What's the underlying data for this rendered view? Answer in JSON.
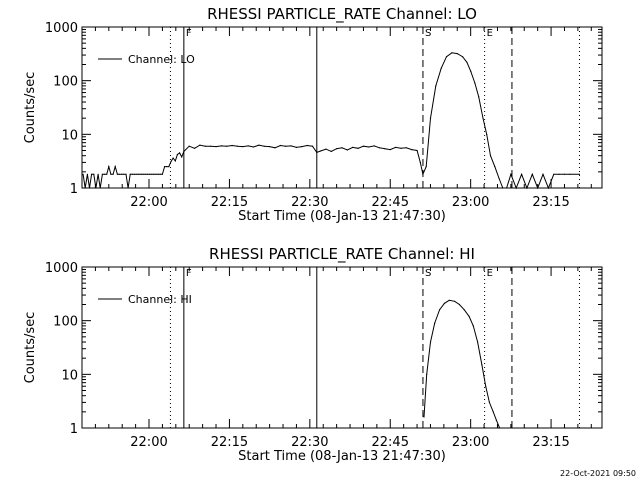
{
  "footer": {
    "timestamp": "22-Oct-2021 09:50"
  },
  "chart_data": [
    {
      "type": "line",
      "title": "RHESSI PARTICLE_RATE Channel: LO",
      "xlabel": "Start Time (08-Jan-13 21:47:30)",
      "ylabel": "Counts/sec",
      "yscale": "log",
      "ylim": [
        1,
        1000
      ],
      "ytick_labels": [
        "1",
        "10",
        "100",
        "1000"
      ],
      "xlim_minutes": [
        0,
        97
      ],
      "xticks_minutes": [
        12.5,
        27.5,
        42.5,
        57.5,
        72.5,
        87.5
      ],
      "xtick_labels": [
        "22:00",
        "22:15",
        "22:30",
        "22:45",
        "23:00",
        "23:15"
      ],
      "legend": {
        "label": "Channel: LO",
        "position": "top-left"
      },
      "markers": [
        {
          "label": "",
          "x": 16.5,
          "style": "dotted"
        },
        {
          "label": "F",
          "x": 19.0,
          "style": "solid"
        },
        {
          "label": "",
          "x": 43.8,
          "style": "solid"
        },
        {
          "label": "S",
          "x": 63.6,
          "style": "dashed"
        },
        {
          "label": "E",
          "x": 75.1,
          "style": "dotted"
        },
        {
          "label": "",
          "x": 80.2,
          "style": "dashed"
        },
        {
          "label": "",
          "x": 92.8,
          "style": "dotted"
        }
      ],
      "series": [
        {
          "color": "#000000",
          "x": [
            0.2,
            0.6,
            1.0,
            1.4,
            1.8,
            2.2,
            2.6,
            3.0,
            3.4,
            3.8,
            4.2,
            4.6,
            5.0,
            5.4,
            5.8,
            6.2,
            6.6,
            7.0,
            7.4,
            7.8,
            8.2,
            8.6,
            9.0,
            9.4,
            9.8,
            10.2,
            10.6,
            11.0,
            11.4,
            11.8,
            12.2,
            12.6,
            13.0,
            13.4,
            13.8,
            14.2,
            14.6,
            15.0,
            15.4,
            15.8,
            16.2,
            16.6,
            17.0,
            17.4,
            17.8,
            18.2,
            18.6,
            19.0,
            20.0,
            21.0,
            22.0,
            23.0,
            24.0,
            25.0,
            26.0,
            27.0,
            28.0,
            29.0,
            30.0,
            31.0,
            32.0,
            33.0,
            34.0,
            35.0,
            36.0,
            37.0,
            38.0,
            39.0,
            40.0,
            41.0,
            42.0,
            43.0,
            43.8,
            44.5,
            45.5,
            46.5,
            47.5,
            48.5,
            49.5,
            50.5,
            51.5,
            52.5,
            53.5,
            54.5,
            55.5,
            56.5,
            57.5,
            58.5,
            59.5,
            60.5,
            61.5,
            62.5,
            63.1,
            63.6,
            64.2,
            65.0,
            66.0,
            67.0,
            68.0,
            69.0,
            70.0,
            71.0,
            71.8,
            72.5,
            73.3,
            74.0,
            74.8,
            75.5,
            76.2,
            77.0,
            77.8,
            78.5,
            79.2,
            80.0,
            81.0,
            82.0,
            83.0,
            84.0,
            85.0,
            86.0,
            87.0,
            88.0,
            89.0,
            90.0,
            91.0,
            92.8
          ],
          "y": [
            1.8,
            1,
            1.8,
            1,
            1.8,
            1.8,
            1,
            1.8,
            1,
            1.8,
            1.8,
            1.8,
            2.5,
            1.8,
            1.8,
            2.5,
            1.8,
            1.8,
            1.8,
            1.8,
            1.8,
            1,
            1.8,
            1.8,
            1.8,
            1.8,
            1.8,
            1.8,
            1.8,
            1.8,
            1.8,
            1.8,
            1.8,
            1.8,
            1.8,
            1.8,
            1.8,
            1.8,
            2.5,
            2.5,
            2.5,
            3.1,
            3.6,
            3.2,
            4.2,
            4.5,
            3.8,
            4.8,
            6.0,
            5.5,
            6.3,
            6.0,
            6.0,
            5.9,
            6.1,
            6.0,
            6.2,
            6.0,
            5.9,
            6.1,
            5.8,
            6.3,
            6.0,
            5.9,
            5.6,
            6.2,
            6.0,
            6.1,
            5.7,
            5.9,
            6.2,
            6.0,
            4.6,
            4.9,
            5.3,
            4.8,
            5.4,
            5.6,
            5.1,
            5.7,
            5.5,
            6.0,
            5.8,
            6.1,
            5.6,
            5.4,
            5.2,
            5.7,
            5.5,
            5.6,
            5.2,
            5.0,
            3.0,
            1.8,
            2.5,
            20,
            80,
            170,
            280,
            330,
            320,
            280,
            220,
            150,
            90,
            50,
            20,
            10,
            4,
            2.5,
            1.5,
            1,
            1,
            1.8,
            1,
            1.8,
            1,
            1.8,
            1,
            1.8,
            1,
            1.8,
            1.8,
            1.8,
            1.8,
            1.8
          ]
        }
      ]
    },
    {
      "type": "line",
      "title": "RHESSI PARTICLE_RATE Channel: HI",
      "xlabel": "Start Time (08-Jan-13 21:47:30)",
      "ylabel": "Counts/sec",
      "yscale": "log",
      "ylim": [
        1,
        1000
      ],
      "ytick_labels": [
        "1",
        "10",
        "100",
        "1000"
      ],
      "xlim_minutes": [
        0,
        97
      ],
      "xticks_minutes": [
        12.5,
        27.5,
        42.5,
        57.5,
        72.5,
        87.5
      ],
      "xtick_labels": [
        "22:00",
        "22:15",
        "22:30",
        "22:45",
        "23:00",
        "23:15"
      ],
      "legend": {
        "label": "Channel: HI",
        "position": "top-left"
      },
      "markers": [
        {
          "label": "",
          "x": 16.5,
          "style": "dotted"
        },
        {
          "label": "F",
          "x": 19.0,
          "style": "solid"
        },
        {
          "label": "",
          "x": 43.8,
          "style": "solid"
        },
        {
          "label": "S",
          "x": 63.6,
          "style": "dashed"
        },
        {
          "label": "E",
          "x": 75.1,
          "style": "dotted"
        },
        {
          "label": "",
          "x": 80.2,
          "style": "dashed"
        },
        {
          "label": "",
          "x": 92.8,
          "style": "dotted"
        }
      ],
      "series": [
        {
          "color": "#000000",
          "x": [
            63.8,
            64.3,
            65.0,
            65.8,
            66.7,
            67.6,
            68.5,
            69.5,
            70.4,
            71.3,
            72.2,
            73.0,
            73.8,
            74.6,
            75.3,
            76.0,
            76.7,
            77.3,
            77.9
          ],
          "y": [
            1.6,
            10,
            40,
            90,
            160,
            210,
            240,
            230,
            200,
            160,
            120,
            80,
            40,
            15,
            6,
            3,
            2,
            1.4,
            1
          ]
        }
      ]
    }
  ]
}
